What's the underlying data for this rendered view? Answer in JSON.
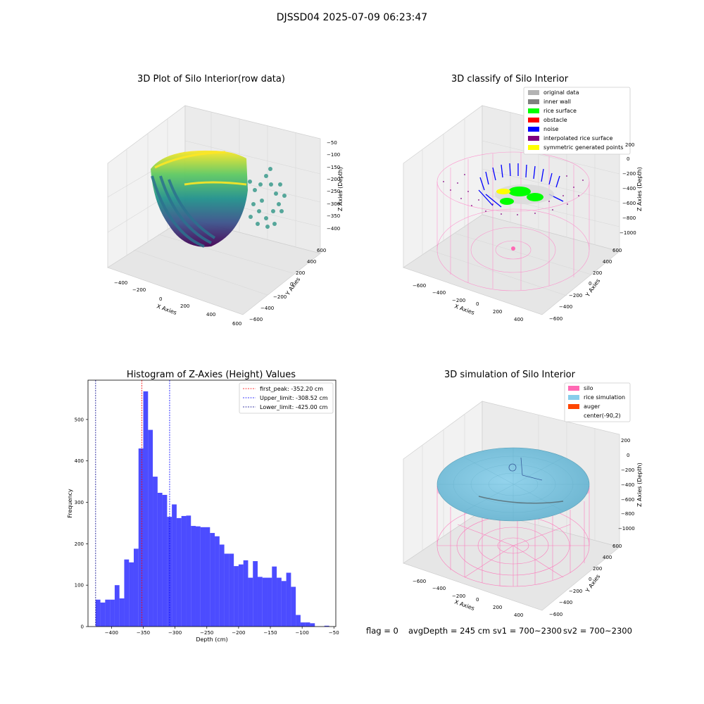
{
  "suptitle": "DJSSD04 2025-07-09 06:23:47",
  "footer": {
    "flag": "flag = 0",
    "avg": "avgDepth = 245 cm",
    "sv1": "sv1 = 700~2300",
    "sv2": "sv2 = 700~2300"
  },
  "panel_raw": {
    "title": "3D Plot of Silo Interior(row data)",
    "xlabel": "X Axies",
    "ylabel": "Y Axies",
    "zlabel": "Z Axies (Depth)",
    "x_ticks": [
      "−400",
      "−200",
      "0",
      "200",
      "400",
      "600"
    ],
    "y_ticks": [
      "−600",
      "−400",
      "−200",
      "0",
      "200",
      "400",
      "600"
    ],
    "z_ticks": [
      "−50",
      "−100",
      "−150",
      "−200",
      "−250",
      "−300",
      "−350",
      "−400"
    ],
    "colormap": "viridis"
  },
  "panel_classify": {
    "title": "3D classify of Silo Interior",
    "xlabel": "X Axies",
    "ylabel": "Y Axies",
    "zlabel": "Z Axies (Depth)",
    "x_ticks": [
      "−600",
      "−400",
      "−200",
      "0",
      "200",
      "400"
    ],
    "y_ticks": [
      "−600",
      "−400",
      "−200",
      "0",
      "200",
      "400",
      "600"
    ],
    "z_ticks": [
      "200",
      "0",
      "−200",
      "−400",
      "−600",
      "−800",
      "−1000"
    ],
    "legend": [
      {
        "label": "original data",
        "color": "#b3b3b3"
      },
      {
        "label": "inner wall",
        "color": "#808080"
      },
      {
        "label": "rice surface",
        "color": "#00ff00"
      },
      {
        "label": "obstacle",
        "color": "#ff0000"
      },
      {
        "label": "noise",
        "color": "#0000ff"
      },
      {
        "label": "interpolated rice surface",
        "color": "#800080"
      },
      {
        "label": "symmetric generated points",
        "color": "#ffff00"
      }
    ]
  },
  "panel_sim": {
    "title": "3D simulation of Silo Interior",
    "xlabel": "X Axies",
    "ylabel": "Y Axies",
    "zlabel": "Z Axies (Depth)",
    "x_ticks": [
      "−600",
      "−400",
      "−200",
      "0",
      "200",
      "400"
    ],
    "y_ticks": [
      "−600",
      "−400",
      "−200",
      "0",
      "200",
      "400",
      "600"
    ],
    "z_ticks": [
      "200",
      "0",
      "−200",
      "−400",
      "−600",
      "−800",
      "−1000"
    ],
    "legend": [
      {
        "label": "silo",
        "color": "#ff69b4"
      },
      {
        "label": "rice simulation",
        "color": "#87ceeb"
      },
      {
        "label": "auger",
        "color": "#ff4500"
      },
      {
        "label": "center(-90,2)",
        "color": ""
      }
    ]
  },
  "chart_data": [
    {
      "type": "bar",
      "title": "Histogram of Z-Axies (Height) Values",
      "xlabel": "Depth (cm)",
      "ylabel": "Frequency",
      "xlim": [
        -437,
        -47
      ],
      "ylim": [
        0,
        595
      ],
      "x_ticks": [
        -400,
        -350,
        -300,
        -250,
        -200,
        -150,
        -100,
        -50
      ],
      "y_ticks": [
        0,
        100,
        200,
        300,
        400,
        500
      ],
      "bar_color": "#0000ff",
      "bin_start": -425,
      "bin_width": 7.5,
      "values": [
        65,
        58,
        65,
        65,
        100,
        68,
        162,
        155,
        188,
        430,
        568,
        475,
        362,
        323,
        318,
        265,
        295,
        262,
        267,
        268,
        243,
        242,
        240,
        240,
        226,
        218,
        198,
        176,
        176,
        146,
        150,
        160,
        118,
        158,
        120,
        118,
        118,
        145,
        118,
        110,
        130,
        96,
        28,
        10,
        10,
        8,
        0,
        0,
        2,
        0,
        0
      ],
      "vlines": [
        {
          "x": -352.2,
          "label": "first_peak: -352.20 cm",
          "color": "#ff0000"
        },
        {
          "x": -308.52,
          "label": "Upper_limit: -308.52 cm",
          "color": "#0000ff"
        },
        {
          "x": -425.0,
          "label": "Lower_limit: -425.00 cm",
          "color": "#00008b"
        }
      ]
    }
  ]
}
